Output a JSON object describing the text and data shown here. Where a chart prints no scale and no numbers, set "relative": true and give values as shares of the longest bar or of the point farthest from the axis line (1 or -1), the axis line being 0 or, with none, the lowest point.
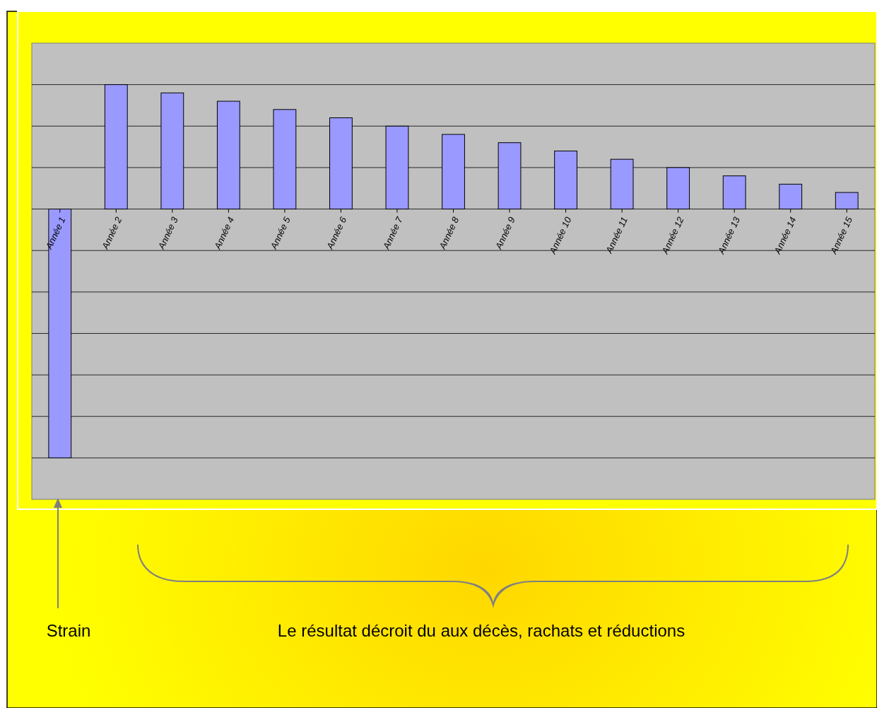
{
  "chart_data": {
    "type": "bar",
    "relative": true,
    "grid": "y",
    "color": "#9999ff",
    "categories": [
      "Année 1",
      "Année 2",
      "Année 3",
      "Année 4",
      "Année 5",
      "Année 6",
      "Année 7",
      "Année 8",
      "Année 9",
      "Année 10",
      "Année 11",
      "Année 12",
      "Année 13",
      "Année 14",
      "Année 15"
    ],
    "values": [
      -1,
      0.5,
      0.4667,
      0.4333,
      0.4,
      0.3667,
      0.3333,
      0.3,
      0.2667,
      0.2333,
      0.2,
      0.1667,
      0.1333,
      0.1,
      0.0667
    ],
    "annotations": [
      "Strain",
      "Le résultat décroit du aux décès, rachats et réductions"
    ]
  }
}
